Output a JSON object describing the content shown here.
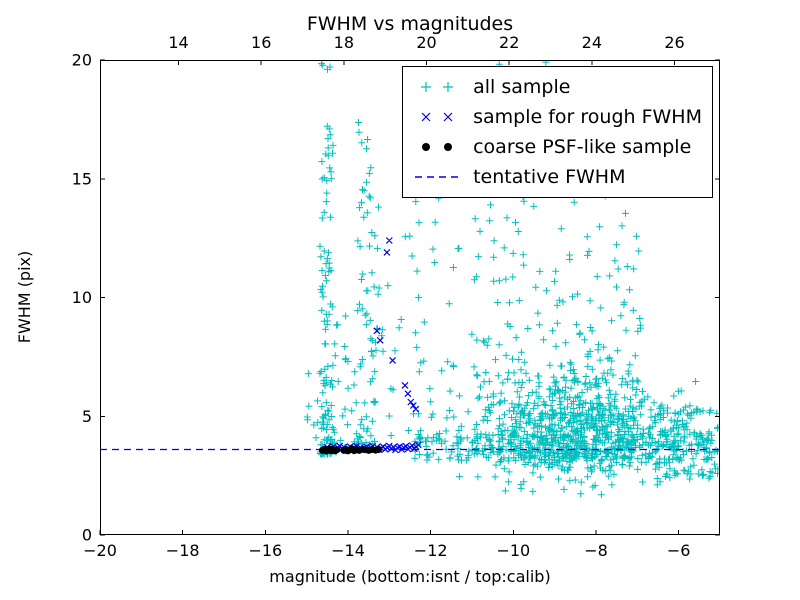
{
  "chart_data": {
    "type": "scatter",
    "title": "FWHM vs magnitudes",
    "xlabel": "magnitude (bottom:isnt / top:calib)",
    "ylabel": "FWHM (pix)",
    "xlim": [
      -20,
      -5
    ],
    "ylim": [
      0,
      20
    ],
    "grid": false,
    "legend_position": "upper right",
    "bottom_ticks": [
      -20,
      -18,
      -16,
      -14,
      -12,
      -10,
      -8,
      -6
    ],
    "y_ticks": [
      0,
      5,
      10,
      15,
      20
    ],
    "top_axis": {
      "min": 12.1,
      "max": 27.1,
      "ticks": [
        14,
        16,
        18,
        20,
        22,
        24,
        26
      ]
    },
    "tentative_fwhm": 3.6,
    "colors": {
      "all_sample": "#00bfbf",
      "rough_fwhm": "#0000ee",
      "psf_like": "#000000",
      "hline": "#0000ee",
      "axis": "#000000"
    },
    "legend": [
      {
        "label": "all sample",
        "marker": "plus",
        "color": "#00bfbf"
      },
      {
        "label": "sample for rough FWHM",
        "marker": "x",
        "color": "#0000ee"
      },
      {
        "label": "coarse PSF-like sample",
        "marker": "dot",
        "color": "#000000"
      },
      {
        "label": "tentative FWHM",
        "marker": "dashed-line",
        "color": "#0000ee"
      }
    ],
    "series": [
      {
        "name": "all sample",
        "marker": "plus",
        "color": "#00bfbf",
        "seed": 42,
        "clusters": [
          {
            "kind": "uniform",
            "x": [
              -15.05,
              -14.68
            ],
            "y": [
              3.4,
              7.5
            ],
            "n": 8,
            "ybias": 1.5
          },
          {
            "kind": "uniform",
            "x": [
              -14.68,
              -14.36
            ],
            "y": [
              3.4,
              20.0
            ],
            "n": 115,
            "ybias": 2.1
          },
          {
            "kind": "uniform",
            "x": [
              -14.36,
              -13.82
            ],
            "y": [
              3.5,
              9.5
            ],
            "n": 26,
            "ybias": 2.0
          },
          {
            "kind": "uniform",
            "x": [
              -13.82,
              -13.28
            ],
            "y": [
              3.8,
              17.5
            ],
            "n": 75,
            "ybias": 1.9
          },
          {
            "kind": "uniform",
            "x": [
              -13.28,
              -11.25
            ],
            "y": [
              4.0,
              15.5
            ],
            "n": 55,
            "ybias": 1.7
          },
          {
            "kind": "gauss",
            "mx": -8.45,
            "sx": 1.3,
            "my": 4.35,
            "sy": 1.05,
            "n": 820
          },
          {
            "kind": "uniform",
            "x": [
              -11.05,
              -6.9
            ],
            "y": [
              6.4,
              13.5
            ],
            "n": 150,
            "ybias": 1.7
          },
          {
            "kind": "uniform",
            "x": [
              -10.6,
              -7.2
            ],
            "y": [
              13.5,
              20.0
            ],
            "n": 32,
            "ybias": 1.3
          },
          {
            "kind": "uniform",
            "x": [
              -12.42,
              -5.1
            ],
            "y": [
              3.15,
              4.25
            ],
            "n": 230,
            "ybias": 1.0
          },
          {
            "kind": "uniform",
            "x": [
              -6.6,
              -5.05
            ],
            "y": [
              2.35,
              5.3
            ],
            "n": 85,
            "ybias": 1.5
          }
        ]
      },
      {
        "name": "sample for rough FWHM",
        "marker": "x",
        "color": "#0000ee",
        "points": [
          [
            -14.55,
            3.62
          ],
          [
            -14.5,
            3.7
          ],
          [
            -14.45,
            3.58
          ],
          [
            -14.4,
            3.66
          ],
          [
            -14.35,
            3.73
          ],
          [
            -14.3,
            3.6
          ],
          [
            -14.25,
            3.68
          ],
          [
            -14.2,
            3.75
          ],
          [
            -14.15,
            3.62
          ],
          [
            -14.1,
            3.7
          ],
          [
            -14.05,
            3.58
          ],
          [
            -14.0,
            3.66
          ],
          [
            -13.95,
            3.72
          ],
          [
            -13.9,
            3.6
          ],
          [
            -13.85,
            3.68
          ],
          [
            -13.8,
            3.74
          ],
          [
            -13.75,
            3.61
          ],
          [
            -13.7,
            3.69
          ],
          [
            -13.65,
            3.57
          ],
          [
            -13.6,
            3.65
          ],
          [
            -13.55,
            3.71
          ],
          [
            -13.5,
            3.6
          ],
          [
            -13.45,
            3.67
          ],
          [
            -13.4,
            3.74
          ],
          [
            -13.35,
            3.62
          ],
          [
            -13.3,
            3.7
          ],
          [
            -13.25,
            3.59
          ],
          [
            -13.2,
            3.66
          ],
          [
            -13.15,
            3.72
          ],
          [
            -13.1,
            3.61
          ],
          [
            -13.05,
            3.68
          ],
          [
            -13.0,
            3.75
          ],
          [
            -12.95,
            3.63
          ],
          [
            -12.9,
            3.7
          ],
          [
            -12.85,
            3.58
          ],
          [
            -12.8,
            3.67
          ],
          [
            -12.75,
            3.73
          ],
          [
            -12.7,
            3.6
          ],
          [
            -12.65,
            3.68
          ],
          [
            -12.6,
            3.74
          ],
          [
            -12.55,
            3.62
          ],
          [
            -12.5,
            3.69
          ],
          [
            -12.45,
            3.77
          ],
          [
            -12.4,
            3.64
          ],
          [
            -12.35,
            3.71
          ],
          [
            -12.3,
            3.8
          ],
          [
            -13.0,
            12.4
          ],
          [
            -13.06,
            11.9
          ],
          [
            -13.3,
            8.6
          ],
          [
            -13.22,
            8.2
          ],
          [
            -12.92,
            7.35
          ],
          [
            -12.62,
            6.3
          ],
          [
            -12.55,
            5.95
          ],
          [
            -12.48,
            5.6
          ],
          [
            -12.42,
            5.45
          ],
          [
            -12.36,
            5.3
          ]
        ]
      },
      {
        "name": "coarse PSF-like sample",
        "marker": "dot",
        "color": "#000000",
        "points": [
          [
            -14.62,
            3.56
          ],
          [
            -14.57,
            3.6
          ],
          [
            -14.53,
            3.53
          ],
          [
            -14.48,
            3.58
          ],
          [
            -14.44,
            3.62
          ],
          [
            -14.4,
            3.55
          ],
          [
            -14.36,
            3.6
          ],
          [
            -14.31,
            3.54
          ],
          [
            -14.27,
            3.59
          ],
          [
            -14.1,
            3.56
          ],
          [
            -14.05,
            3.6
          ],
          [
            -14.0,
            3.54
          ],
          [
            -13.95,
            3.59
          ],
          [
            -13.9,
            3.62
          ],
          [
            -13.85,
            3.55
          ],
          [
            -13.8,
            3.6
          ],
          [
            -13.73,
            3.56
          ],
          [
            -13.62,
            3.6
          ],
          [
            -13.5,
            3.56
          ],
          [
            -13.42,
            3.6
          ],
          [
            -13.33,
            3.57
          ],
          [
            -13.26,
            3.6
          ]
        ]
      },
      {
        "name": "tentative FWHM",
        "marker": "hline",
        "linestyle": "dashed",
        "color": "#0000ee",
        "y": 3.6
      }
    ]
  }
}
